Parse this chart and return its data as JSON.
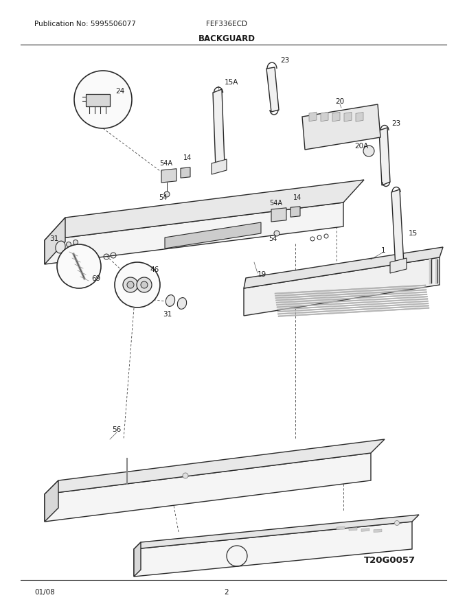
{
  "pub_no": "Publication No: 5995506077",
  "model": "FEF336ECD",
  "section": "BACKGUARD",
  "diagram_id": "T20G0057",
  "date": "01/08",
  "page": "2",
  "bg_color": "#ffffff",
  "line_color": "#2a2a2a",
  "text_color": "#1a1a1a",
  "label_fs": 7.5,
  "header_fs": 8,
  "title_fs": 9
}
